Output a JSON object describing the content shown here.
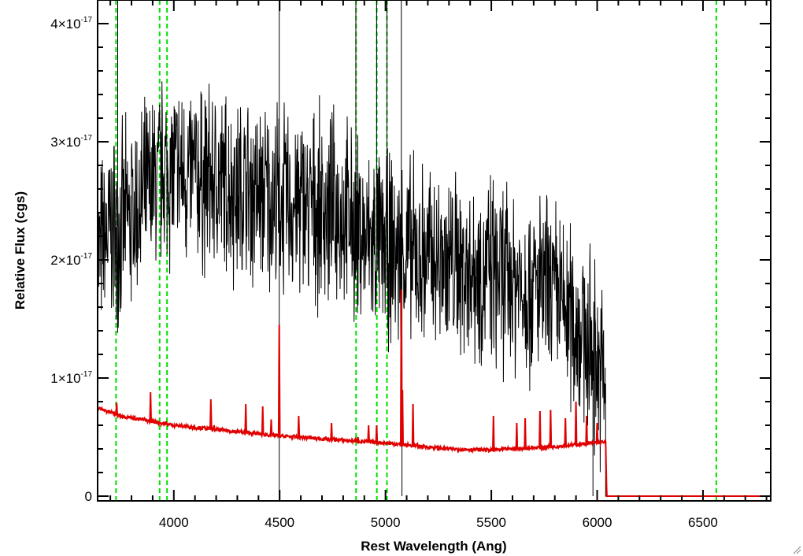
{
  "chart_data": {
    "type": "line",
    "title": "",
    "xlabel": "Rest Wavelength (Ang)",
    "ylabel": "Relative Flux (cgs)",
    "xlim": [
      3640,
      6820
    ],
    "ylim": [
      -4e-19,
      4.2e-17
    ],
    "grid": false,
    "xticks": [
      4000,
      4500,
      5000,
      5500,
      6000,
      6500
    ],
    "yticks": [
      {
        "value": 0,
        "label": "0",
        "exp": ""
      },
      {
        "value": 1e-17,
        "label": "1×10",
        "exp": "-17"
      },
      {
        "value": 2e-17,
        "label": "2×10",
        "exp": "-17"
      },
      {
        "value": 3e-17,
        "label": "3×10",
        "exp": "-17"
      },
      {
        "value": 4e-17,
        "label": "4×10",
        "exp": "-17"
      }
    ],
    "series": [
      {
        "color": "#000000",
        "style": "noisy",
        "cutoff": 6040,
        "continuum": [
          [
            3650,
            2.05e-17
          ],
          [
            3700,
            2.25e-17
          ],
          [
            3800,
            2.35e-17
          ],
          [
            3950,
            2.75e-17
          ],
          [
            4100,
            2.7e-17
          ],
          [
            4500,
            2.5e-17
          ],
          [
            4800,
            2.4e-17
          ],
          [
            4900,
            2.15e-17
          ],
          [
            5100,
            2.05e-17
          ],
          [
            5500,
            1.9e-17
          ],
          [
            5800,
            1.7e-17
          ],
          [
            5950,
            1.35e-17
          ],
          [
            6040,
            9.5e-18
          ]
        ],
        "spikes": [
          [
            3735,
            4.3e-17
          ],
          [
            3728,
            1.5e-17
          ],
          [
            4498,
            4.2e-17
          ],
          [
            4498,
            -5e-19
          ],
          [
            4860,
            4.3e-17
          ],
          [
            4958,
            4.3e-17
          ],
          [
            5007,
            4.3e-17
          ],
          [
            5075,
            4.3e-17
          ],
          [
            5078,
            0.0
          ],
          [
            5980,
            0.0
          ]
        ]
      },
      {
        "color": "#e00000",
        "style": "model",
        "cutoff": 6045,
        "continuum": [
          [
            3650,
            7.4e-18
          ],
          [
            3750,
            6.8e-18
          ],
          [
            4000,
            6e-18
          ],
          [
            4500,
            5.1e-18
          ],
          [
            5000,
            4.5e-18
          ],
          [
            5300,
            4e-18
          ],
          [
            5500,
            3.9e-18
          ],
          [
            5800,
            4.2e-18
          ],
          [
            6040,
            4.6e-18
          ],
          [
            6045,
            0.0
          ],
          [
            6820,
            0.0
          ]
        ],
        "lines": [
          [
            3730,
            7.9e-18
          ],
          [
            3890,
            8.8e-18
          ],
          [
            4175,
            8.2e-18
          ],
          [
            4190,
            6e-18
          ],
          [
            4300,
            5.6e-18
          ],
          [
            4340,
            7.8e-18
          ],
          [
            4420,
            7.6e-18
          ],
          [
            4460,
            6.5e-18
          ],
          [
            4498,
            1.45e-17
          ],
          [
            4590,
            6.8e-18
          ],
          [
            4745,
            6.2e-18
          ],
          [
            4870,
            5e-18
          ],
          [
            4920,
            6e-18
          ],
          [
            4958,
            6e-18
          ],
          [
            5075,
            1.75e-17
          ],
          [
            5080,
            9e-18
          ],
          [
            5130,
            7.8e-18
          ],
          [
            5510,
            6.8e-18
          ],
          [
            5620,
            6.2e-18
          ],
          [
            5660,
            6.6e-18
          ],
          [
            5730,
            7.2e-18
          ],
          [
            5780,
            7.3e-18
          ],
          [
            5850,
            6.6e-18
          ],
          [
            5900,
            8e-18
          ],
          [
            5950,
            6.8e-18
          ],
          [
            6000,
            6.2e-18
          ]
        ]
      }
    ],
    "vlines": [
      {
        "x": 3727,
        "color": "#00e000"
      },
      {
        "x": 3933,
        "color": "#00e000"
      },
      {
        "x": 3968,
        "color": "#00e000"
      },
      {
        "x": 4861,
        "color": "#00e000"
      },
      {
        "x": 4959,
        "color": "#00e000"
      },
      {
        "x": 5007,
        "color": "#00e000"
      },
      {
        "x": 6563,
        "color": "#00e000"
      }
    ]
  }
}
